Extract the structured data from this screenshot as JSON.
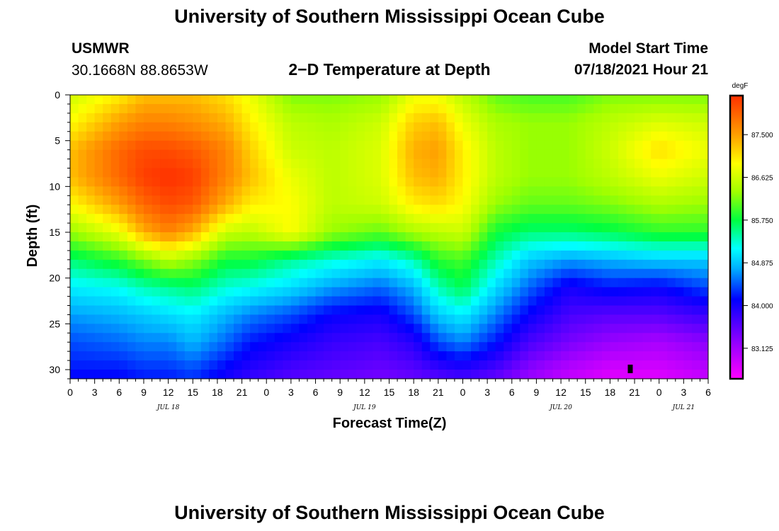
{
  "page": {
    "title_top": "University of Southern Mississippi Ocean Cube",
    "title_bottom": "University of Southern Mississippi Ocean Cube",
    "station": "USMWR",
    "coords": "30.1668N  88.8653W",
    "subtitle": "2−D Temperature at Depth",
    "model_start_label": "Model Start Time",
    "model_start_value": "07/18/2021 Hour 21"
  },
  "chart_data": {
    "type": "heatmap",
    "title": "2−D Temperature at Depth",
    "xlabel": "Forecast Time(Z)",
    "ylabel": "Depth (ft)",
    "x_range_hours": [
      0,
      78
    ],
    "x_ticks": [
      {
        "h": 0,
        "label": "0"
      },
      {
        "h": 3,
        "label": "3"
      },
      {
        "h": 6,
        "label": "6"
      },
      {
        "h": 9,
        "label": "9"
      },
      {
        "h": 12,
        "label": "12"
      },
      {
        "h": 15,
        "label": "15"
      },
      {
        "h": 18,
        "label": "18"
      },
      {
        "h": 21,
        "label": "21"
      },
      {
        "h": 24,
        "label": "0"
      },
      {
        "h": 27,
        "label": "3"
      },
      {
        "h": 30,
        "label": "6"
      },
      {
        "h": 33,
        "label": "9"
      },
      {
        "h": 36,
        "label": "12"
      },
      {
        "h": 39,
        "label": "15"
      },
      {
        "h": 42,
        "label": "18"
      },
      {
        "h": 45,
        "label": "21"
      },
      {
        "h": 48,
        "label": "0"
      },
      {
        "h": 51,
        "label": "3"
      },
      {
        "h": 54,
        "label": "6"
      },
      {
        "h": 57,
        "label": "9"
      },
      {
        "h": 60,
        "label": "12"
      },
      {
        "h": 63,
        "label": "15"
      },
      {
        "h": 66,
        "label": "18"
      },
      {
        "h": 69,
        "label": "21"
      },
      {
        "h": 72,
        "label": "0"
      },
      {
        "h": 75,
        "label": "3"
      },
      {
        "h": 78,
        "label": "6"
      }
    ],
    "date_labels": [
      {
        "h": 12,
        "label": "JUL 18"
      },
      {
        "h": 36,
        "label": "JUL 19"
      },
      {
        "h": 60,
        "label": "JUL 20"
      },
      {
        "h": 75,
        "label": "JUL 21"
      }
    ],
    "y_range": [
      0,
      31
    ],
    "y_ticks": [
      0,
      5,
      10,
      15,
      20,
      25,
      30
    ],
    "colorbar": {
      "unit": "degF",
      "min": 82.5,
      "max": 88.3,
      "labels": [
        "87.500",
        "86.625",
        "85.750",
        "84.875",
        "84.000",
        "83.125"
      ],
      "label_values": [
        87.5,
        86.625,
        85.75,
        84.875,
        84.0,
        83.125
      ],
      "colors": [
        "#ff00ff",
        "#9a00ff",
        "#0000ff",
        "#00b0ff",
        "#00ffff",
        "#00ff40",
        "#a0ff00",
        "#ffff00",
        "#ffa000",
        "#ff3000"
      ]
    },
    "temperature_grid": {
      "hours": [
        0,
        6,
        9,
        12,
        15,
        19,
        22,
        27,
        32,
        38,
        42,
        45,
        48,
        52,
        56,
        61,
        66,
        72,
        78
      ],
      "depths": [
        0,
        3,
        6,
        9,
        12,
        15,
        18,
        21,
        24,
        27,
        30,
        31
      ],
      "values": [
        [
          86.6,
          87.0,
          87.3,
          87.3,
          87.3,
          87.1,
          86.8,
          86.2,
          86.2,
          86.3,
          86.8,
          86.8,
          86.5,
          86.1,
          86.0,
          86.0,
          86.2,
          86.2,
          86.2
        ],
        [
          86.9,
          87.5,
          87.7,
          87.7,
          87.6,
          87.4,
          87.0,
          86.5,
          86.4,
          86.6,
          87.2,
          87.3,
          86.8,
          86.4,
          86.3,
          86.3,
          86.5,
          86.7,
          86.6
        ],
        [
          87.3,
          87.9,
          88.1,
          88.1,
          88.0,
          87.7,
          87.2,
          86.6,
          86.5,
          86.7,
          87.4,
          87.5,
          87.0,
          86.5,
          86.3,
          86.3,
          86.6,
          87.1,
          86.8
        ],
        [
          87.3,
          87.9,
          88.2,
          88.3,
          88.2,
          87.7,
          87.3,
          86.8,
          86.5,
          86.7,
          87.3,
          87.4,
          87.0,
          86.5,
          86.3,
          86.3,
          86.5,
          86.8,
          86.6
        ],
        [
          86.9,
          87.5,
          87.9,
          88.1,
          88.0,
          87.4,
          87.0,
          86.9,
          86.5,
          86.6,
          87.0,
          87.1,
          86.9,
          86.3,
          86.1,
          86.1,
          86.2,
          86.4,
          86.3
        ],
        [
          86.3,
          86.8,
          87.4,
          87.7,
          87.4,
          86.6,
          86.5,
          86.9,
          86.3,
          86.1,
          86.4,
          86.5,
          86.6,
          85.8,
          85.6,
          85.6,
          85.7,
          85.9,
          85.9
        ],
        [
          85.6,
          85.9,
          86.2,
          86.5,
          86.3,
          85.8,
          85.8,
          85.5,
          85.3,
          85.1,
          85.4,
          85.9,
          86.0,
          85.4,
          84.9,
          84.7,
          84.8,
          84.9,
          84.9
        ],
        [
          85.1,
          85.2,
          85.4,
          85.5,
          85.6,
          85.3,
          85.2,
          85.0,
          84.7,
          84.5,
          84.8,
          85.4,
          85.7,
          85.0,
          84.5,
          84.0,
          84.2,
          84.1,
          84.4
        ],
        [
          84.7,
          84.8,
          84.9,
          85.0,
          85.1,
          84.8,
          84.6,
          84.4,
          84.1,
          84.0,
          84.4,
          84.9,
          85.1,
          84.6,
          84.1,
          83.7,
          83.6,
          83.6,
          83.8
        ],
        [
          84.4,
          84.5,
          84.6,
          84.6,
          84.8,
          84.5,
          84.2,
          84.0,
          83.8,
          83.7,
          83.9,
          84.4,
          84.6,
          84.2,
          83.7,
          83.4,
          83.2,
          83.1,
          83.3
        ],
        [
          84.2,
          84.2,
          84.3,
          84.3,
          84.4,
          84.1,
          83.9,
          83.7,
          83.6,
          83.5,
          83.6,
          83.8,
          83.9,
          83.7,
          83.3,
          83.0,
          82.8,
          82.8,
          83.0
        ],
        [
          84.1,
          84.1,
          84.2,
          84.2,
          84.3,
          84.0,
          83.8,
          83.6,
          83.5,
          83.4,
          83.5,
          83.6,
          83.7,
          83.5,
          83.2,
          82.9,
          82.7,
          82.7,
          82.9
        ]
      ]
    },
    "marker": {
      "hour": 68,
      "depth": 30
    }
  }
}
